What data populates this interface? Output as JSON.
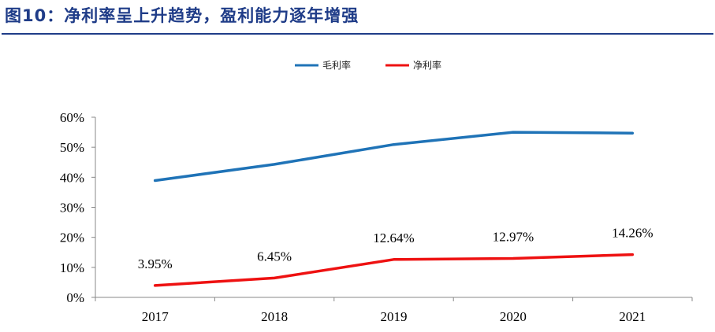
{
  "title": "图10：净利率呈上升趋势，盈利能力逐年增强",
  "colors": {
    "title": "#1f3c88",
    "gross": "#1f73b7",
    "net": "#ee1111"
  },
  "chart_data": {
    "type": "line",
    "categories": [
      "2017",
      "2018",
      "2019",
      "2020",
      "2021"
    ],
    "ylim": [
      0,
      60
    ],
    "yticks": [
      "0%",
      "10%",
      "20%",
      "30%",
      "40%",
      "50%",
      "60%"
    ],
    "legend_position": "top-center",
    "grid": false,
    "series": [
      {
        "name": "毛利率",
        "values": [
          38.9,
          44.3,
          50.9,
          55.0,
          54.7
        ]
      },
      {
        "name": "净利率",
        "values": [
          3.95,
          6.45,
          12.64,
          12.97,
          14.26
        ],
        "labels": [
          "3.95%",
          "6.45%",
          "12.64%",
          "12.97%",
          "14.26%"
        ]
      }
    ]
  }
}
